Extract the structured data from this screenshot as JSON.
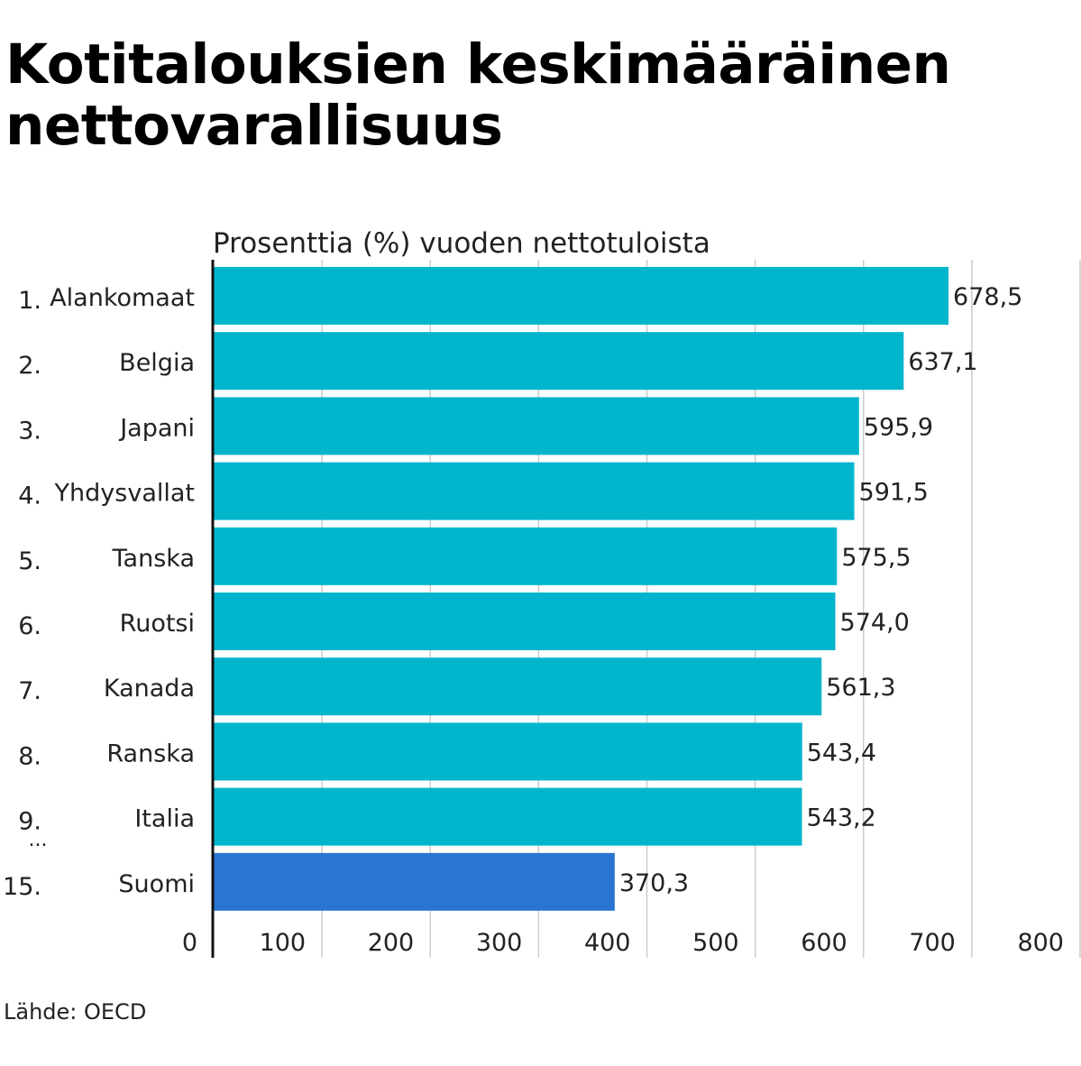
{
  "chart_data": {
    "type": "bar",
    "orientation": "horizontal",
    "title": "Kotitalouksien keskimääräinen nettovarallisuus",
    "subtitle": "Prosenttia (%) vuoden nettotuloista",
    "source": "Lähde: OECD",
    "ranks": [
      "1.",
      "2.",
      "3.",
      "4.",
      "5.",
      "6.",
      "7.",
      "8.",
      "9.",
      "15."
    ],
    "rank_gap_marker": "...",
    "categories": [
      "Alankomaat",
      "Belgia",
      "Japani",
      "Yhdysvallat",
      "Tanska",
      "Ruotsi",
      "Kanada",
      "Ranska",
      "Italia",
      "Suomi"
    ],
    "values": [
      678.5,
      637.1,
      595.9,
      591.5,
      575.5,
      574.0,
      561.3,
      543.4,
      543.2,
      370.3
    ],
    "value_labels": [
      "678,5",
      "637,1",
      "595,9",
      "591,5",
      "575,5",
      "574,0",
      "561,3",
      "543,4",
      "543,2",
      "370,3"
    ],
    "xlim": [
      0,
      800
    ],
    "xticks": [
      0,
      100,
      200,
      300,
      400,
      500,
      600,
      700,
      800
    ],
    "xtick_labels": [
      "0",
      "100",
      "200",
      "300",
      "400",
      "500",
      "600",
      "700",
      "800"
    ],
    "grid": true,
    "colors": {
      "default": "#00b5cc",
      "highlight": "#2975d1",
      "grid": "#cccccc",
      "axis": "#111111"
    },
    "highlight_index": 9
  }
}
